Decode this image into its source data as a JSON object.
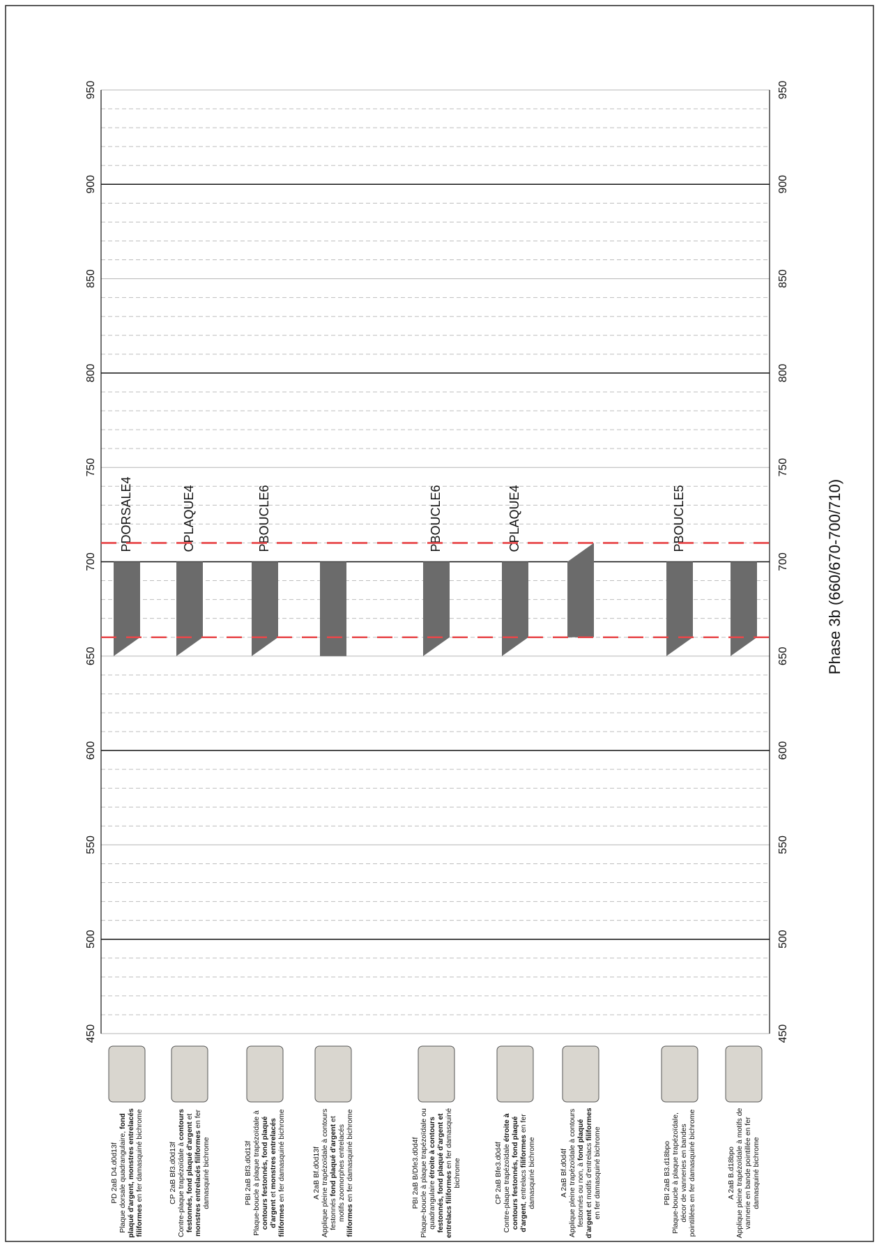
{
  "chart_data": {
    "type": "range-bar",
    "title": "Phase 3b (660/670-700/710)",
    "ylim": [
      450,
      950
    ],
    "yticks": [
      450,
      500,
      550,
      600,
      650,
      700,
      750,
      800,
      850,
      900,
      950
    ],
    "major_yticks": [
      500,
      600,
      700,
      800,
      900
    ],
    "minor_yticks": [
      460,
      470,
      480,
      490,
      510,
      520,
      530,
      540,
      560,
      570,
      580,
      590,
      610,
      620,
      630,
      640,
      660,
      670,
      680,
      690,
      710,
      720,
      730,
      740,
      760,
      770,
      780,
      790,
      810,
      820,
      830,
      840,
      860,
      870,
      880,
      890,
      910,
      920,
      930,
      940
    ],
    "reference_lines": [
      660,
      710
    ],
    "reference_color": "#e8474a",
    "color": "#6b6b6b",
    "categories": [
      "PDORSALE4",
      "CPLAQUE4",
      "PBOUCLE6",
      null,
      "PBOUCLE6",
      "CPLAQUE4",
      null,
      "PBOUCLE5",
      null
    ],
    "early_start": [
      650,
      650,
      650,
      650,
      650,
      650,
      660,
      650,
      650
    ],
    "late_start": [
      660,
      660,
      660,
      650,
      660,
      660,
      660,
      660,
      660
    ],
    "early_end": [
      700,
      700,
      700,
      700,
      700,
      700,
      700,
      700,
      700
    ],
    "late_end": [
      700,
      700,
      700,
      700,
      700,
      700,
      710,
      700,
      700
    ],
    "items": [
      {
        "code": "PD 2aB D4.d0d13f",
        "parts": [
          {
            "text": "Plaque dorsale quadrangulaire, "
          },
          {
            "text": "fond plaqué d'argent, monstres entrelacés filiformes",
            "bold": true
          },
          {
            "text": " en fer damasquiné bichrome"
          }
        ]
      },
      {
        "code": "CP 2aB Bf3.d0d13f",
        "parts": [
          {
            "text": "Contre-plaque trapézoïdale à "
          },
          {
            "text": "contours festonnés, fond plaqué d'argent",
            "bold": true
          },
          {
            "text": " et "
          },
          {
            "text": "monstres entrelacés filiformes",
            "bold": true
          },
          {
            "text": " en fer damasquiné bichrome"
          }
        ]
      },
      {
        "code": "PBI 2aB Bf3.d0d13f",
        "parts": [
          {
            "text": "Plaque-boucle à plaque trapézoïdale à "
          },
          {
            "text": "contours festonnés, fond plaqué d'argent",
            "bold": true
          },
          {
            "text": " et "
          },
          {
            "text": "monstres entrelacés filiformes",
            "bold": true
          },
          {
            "text": " en fer damasquiné bichrome"
          }
        ]
      },
      {
        "code": "A 2aB Bf.d0d13f",
        "parts": [
          {
            "text": "Applique pleine trapézoïdale à contours festonnés "
          },
          {
            "text": "fond plaqué d'argent",
            "bold": true
          },
          {
            "text": " et motifs zoomorphes entrelacés "
          },
          {
            "text": "filiformes",
            "bold": true
          },
          {
            "text": " en fer damasquiné bichrome"
          }
        ]
      },
      {
        "code": "PBI 2aB B/Dfe3.d0d4f",
        "parts": [
          {
            "text": "Plaque-boucle à plaque trapézoïdale ou quadrangulaire "
          },
          {
            "text": "étroite à contours festonnés, fond plaqué d'argent et entrelacs filiformes",
            "bold": true
          },
          {
            "text": " en fer damasquiné bichrome"
          }
        ]
      },
      {
        "code": "CP 2aB Bfe3.d0d4f",
        "parts": [
          {
            "text": "Contre-plaque trapézoïdale "
          },
          {
            "text": "étroite à contours festonnés, fond plaqué d'argent",
            "bold": true
          },
          {
            "text": ", entrelacs "
          },
          {
            "text": "filiformes",
            "bold": true
          },
          {
            "text": " en fer damasquiné bichrome"
          }
        ]
      },
      {
        "code": "A 2aB Bf.d0d4f",
        "parts": [
          {
            "text": "Applique pleine trapézoïdale à contours festonnés ou non, à "
          },
          {
            "text": "fond plaqué d'argent",
            "bold": true
          },
          {
            "text": " et motifs d'entrelacs "
          },
          {
            "text": "filiformes",
            "bold": true
          },
          {
            "text": " en fer damasquiné bichrome"
          }
        ]
      },
      {
        "code": "PBI 2aB B3.d18bpo",
        "parts": [
          {
            "text": "Plaque-boucle à plaque trapézoïdale, décor de vanneries en bandes pointillées en fer damasquiné bichrome"
          }
        ]
      },
      {
        "code": "A 2aB B.d18bpo",
        "parts": [
          {
            "text": "Applique pleine trapézoïdale à motifs de vannerie en bande pointillée en fer damasquiné bichrome"
          }
        ]
      }
    ]
  }
}
